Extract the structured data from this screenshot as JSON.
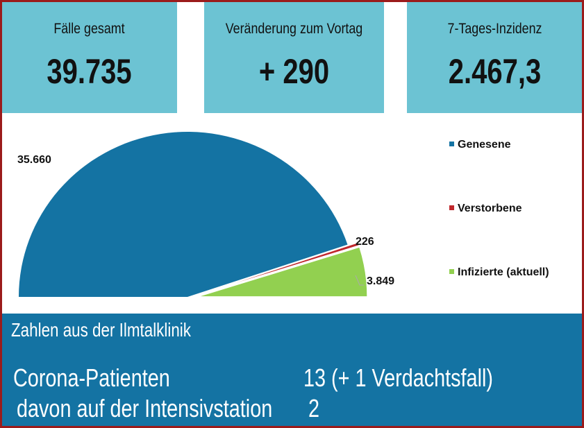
{
  "kpis": [
    {
      "label": "Fälle gesamt",
      "value": "39.735"
    },
    {
      "label": "Veränderung zum Vortag",
      "value": "+ 290"
    },
    {
      "label": "7-Tages-Inzidenz",
      "value": "2.467,3"
    }
  ],
  "chart_data": {
    "type": "pie",
    "subtype": "half-pie",
    "slices": [
      {
        "name": "Genesene",
        "value": 35660,
        "label": "35.660",
        "color": "#1473a3"
      },
      {
        "name": "Verstorbene",
        "value": 226,
        "label": "226",
        "color": "#c0282d"
      },
      {
        "name": "Infizierte (aktuell)",
        "value": 3849,
        "label": "3.849",
        "color": "#92d050"
      }
    ],
    "legend": "right"
  },
  "clinic": {
    "title": "Zahlen aus der Ilmtalklinik",
    "rows": [
      {
        "label": "Corona-Patienten",
        "value": "13 (+ 1 Verdachtsfall)"
      },
      {
        "label": "davon auf der Intensivstation",
        "value": "2"
      }
    ]
  }
}
